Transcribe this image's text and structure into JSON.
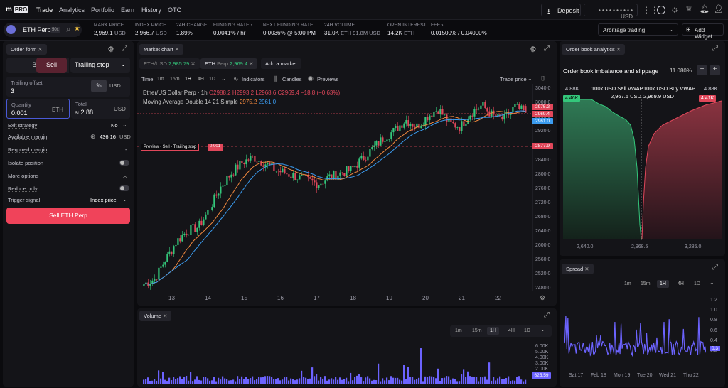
{
  "nav": {
    "logo_text": "m",
    "logo_badge": "PRO",
    "items": [
      "Trade",
      "Analytics",
      "Portfolio",
      "Earn",
      "History",
      "OTC"
    ],
    "deposit_label": "Deposit",
    "account_value": "• • • • • • • • • • USD"
  },
  "stats": {
    "pair_label": "ETH Perp",
    "leverage": "50x",
    "items": [
      {
        "label": "MARK PRICE",
        "value": "2,969.1",
        "unit": "USD"
      },
      {
        "label": "INDEX PRICE",
        "value": "2,966.7",
        "unit": "USD"
      },
      {
        "label": "24H CHANGE",
        "value": "1.89%",
        "unit": ""
      },
      {
        "label": "FUNDING RATE ›",
        "value": "0.0041% / hr",
        "unit": ""
      },
      {
        "label": "NEXT FUNDING RATE",
        "value": "0.0036% @ 5:00 PM",
        "unit": ""
      },
      {
        "label": "24H VOLUME",
        "value": "31.0K",
        "unit": "ETH  91.8M USD"
      },
      {
        "label": "OPEN INTEREST",
        "value": "14.2K",
        "unit": "ETH"
      },
      {
        "label": "FEE ›",
        "value": "0.01500% / 0.04000%",
        "unit": ""
      }
    ],
    "layout_select": "Arbitrage trading",
    "add_widget": "Add Widget"
  },
  "order_form": {
    "title": "Order form",
    "buy": "Buy",
    "sell": "Sell",
    "order_type": "Trailing stop",
    "trailing_offset_label": "Trailing offset",
    "trailing_offset_value": "3",
    "unit_pct": "%",
    "unit_usd": "USD",
    "quantity_label": "Quantity",
    "quantity_value": "0.001",
    "quantity_unit": "ETH",
    "total_label": "Total",
    "total_value": "≈ 2.88",
    "total_unit": "USD",
    "exit_strategy_label": "Exit strategy",
    "exit_strategy_value": "No",
    "available_margin_label": "Available margin",
    "available_margin_value": "436.16",
    "available_margin_unit": "USD",
    "required_margin_label": "Required margin",
    "required_margin_value": "-",
    "isolate_label": "Isolate position",
    "more_options": "More options",
    "reduce_only": "Reduce only",
    "trigger_signal_label": "Trigger signal",
    "trigger_signal_value": "Index price",
    "submit": "Sell ETH Perp"
  },
  "market_chart": {
    "title": "Market chart",
    "tabs": [
      {
        "label": "ETH/USD",
        "price": "2,985.79"
      },
      {
        "label": "ETH",
        "sub": "Perp",
        "price": "2,969.4"
      }
    ],
    "add_market": "Add a market",
    "time_label": "Time",
    "timeframes": [
      "1m",
      "15m",
      "1H",
      "4H",
      "1D"
    ],
    "active_timeframe": "1H",
    "indicators": "Indicators",
    "candles": "Candles",
    "previews": "Previews",
    "trade_price": "Trade price",
    "legend_title": "Ether/US Dollar Perp · 1h",
    "legend_o": "O2988.2",
    "legend_h": "H2993.2",
    "legend_l": "L2968.6",
    "legend_c": "C2969.4",
    "legend_chg": "−18.8 (−0.63%)",
    "ma_label": "Moving Average Double 14 21 Simple",
    "ma_v1": "2975.2",
    "ma_v2": "2961.0",
    "preview_label": "Preview ·  Sell · Trailing stop",
    "preview_qty": "0.001",
    "price_tags": [
      "2975.2",
      "2969.4",
      "2961.0",
      "2877.9"
    ],
    "y_ticks": [
      "3040.0",
      "3000.0",
      "2960.0",
      "2920.0",
      "2880.0",
      "2840.0",
      "2800.0",
      "2760.0",
      "2720.0",
      "2680.0",
      "2640.0",
      "2600.0",
      "2560.0",
      "2520.0",
      "2480.0"
    ],
    "x_ticks": [
      "13",
      "14",
      "15",
      "16",
      "17",
      "18",
      "19",
      "20",
      "21",
      "22"
    ]
  },
  "volume": {
    "title": "Volume",
    "timeframes": [
      "1m",
      "15m",
      "1H",
      "4H",
      "1D"
    ],
    "y_ticks": [
      "6.00K",
      "5.00K",
      "4.00K",
      "3.00K",
      "2.00K",
      "1.00K"
    ],
    "last": "625.59"
  },
  "orderbook": {
    "title": "Order book analytics",
    "subtitle": "Order book imbalance and slippage",
    "pct": "11.080%",
    "left_top": "4.88K",
    "right_top": "4.88K",
    "sell_label": "100k USD Sell VWAP",
    "sell_value": "2,967.5",
    "sell_unit": "USD",
    "buy_label": "100k USD Buy VWAP",
    "buy_value": "2,969.9",
    "buy_unit": "USD",
    "left_badge": "4.46K",
    "right_badge": "4.41K",
    "x_ticks": [
      "2,640.0",
      "2,968.5",
      "3,285.0"
    ]
  },
  "spread": {
    "title": "Spread",
    "timeframes": [
      "1m",
      "15m",
      "1H",
      "4H",
      "1D"
    ],
    "y_ticks": [
      "1.2",
      "1.0",
      "0.8",
      "0.6",
      "0.4",
      "0.2"
    ],
    "last": "0.3",
    "x_ticks": [
      "Sat 17",
      "Feb 18",
      "Mon 19",
      "Tue 20",
      "Wed 21",
      "Thu 22"
    ]
  },
  "colors": {
    "up": "#34c77b",
    "down": "#e0475a",
    "ma_fast": "#f0883e",
    "ma_slow": "#3b9cf0",
    "volume": "#6c63ff",
    "accent_sell": "#f0435a"
  },
  "chart_data": [
    {
      "type": "candlestick",
      "title": "Ether/US Dollar Perp · 1h",
      "ylim": [
        2470,
        3050
      ],
      "x_ticks": [
        "13",
        "14",
        "15",
        "16",
        "17",
        "18",
        "19",
        "20",
        "21",
        "22"
      ],
      "close_path": [
        2490,
        2505,
        2560,
        2610,
        2640,
        2650,
        2700,
        2760,
        2800,
        2830,
        2845,
        2830,
        2810,
        2800,
        2790,
        2780,
        2770,
        2790,
        2800,
        2810,
        2840,
        2870,
        2900,
        2920,
        2950,
        2930,
        2960,
        2980,
        2940,
        2930,
        2970,
        2990,
        2960,
        2950,
        2985,
        2969.4
      ],
      "last": {
        "open": 2988.2,
        "high": 2993.2,
        "low": 2968.6,
        "close": 2969.4
      }
    },
    {
      "type": "bar",
      "title": "Volume",
      "ylim": [
        0,
        6500
      ],
      "last": 625.59
    },
    {
      "type": "area",
      "title": "Order book imbalance and slippage",
      "x_ticks": [
        "2,640.0",
        "2,968.5",
        "3,285.0"
      ],
      "series": [
        {
          "name": "100k USD Sell VWAP",
          "value": 2967.5
        },
        {
          "name": "100k USD Buy VWAP",
          "value": 2969.9
        }
      ]
    },
    {
      "type": "line",
      "title": "Spread",
      "ylim": [
        0,
        1.2
      ],
      "x_ticks": [
        "Sat 17",
        "Feb 18",
        "Mon 19",
        "Tue 20",
        "Wed 21",
        "Thu 22"
      ],
      "last": 0.3
    }
  ]
}
